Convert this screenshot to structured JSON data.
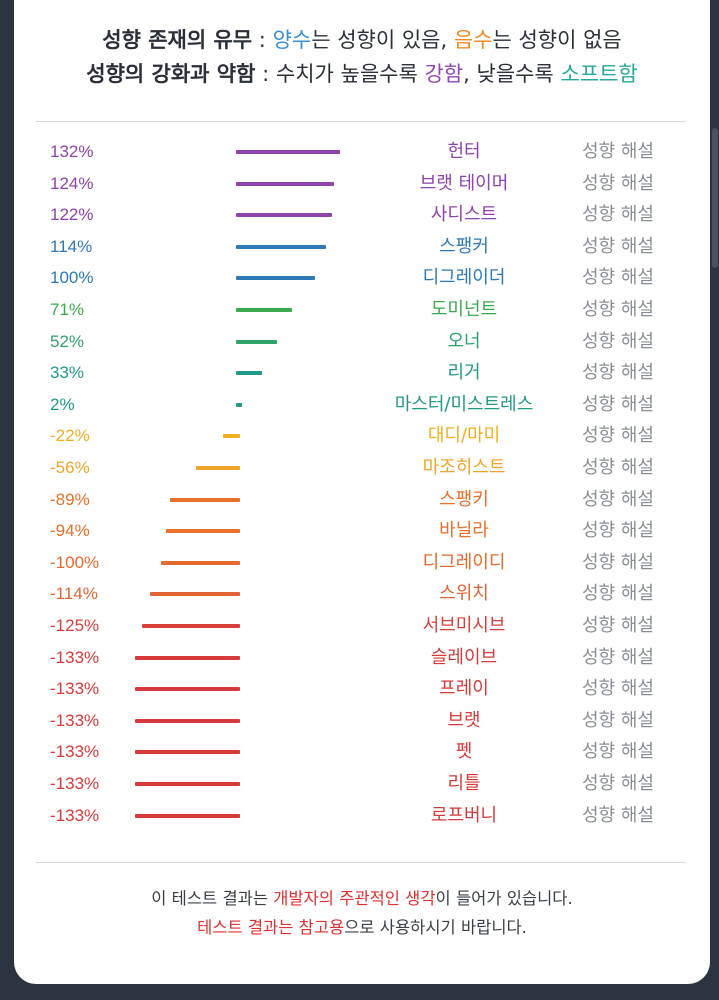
{
  "header": {
    "line1": {
      "title": "성향 존재의 유무",
      "sep": " : ",
      "pos": "양수",
      "pos_rest": "는 성향이 있음, ",
      "neg": "음수",
      "neg_rest": "는 성향이 없음"
    },
    "line2": {
      "title": "성향의 강화과 약함",
      "sep": " : ",
      "rest1": "수치가 높을수록 ",
      "strong": "강함",
      "rest2": ", 낮을수록 ",
      "soft": "소프트함"
    }
  },
  "colors": {
    "blue": "#3a8fd6",
    "orange": "#f08a24",
    "purple": "#9146b8",
    "teal": "#2aa89a",
    "red": "#e03030"
  },
  "desc_label": "성향 해설",
  "rows": [
    {
      "pct": "132%",
      "name": "헌터",
      "value": 132,
      "color": "#8e44ad"
    },
    {
      "pct": "124%",
      "name": "브랫 테이머",
      "value": 124,
      "color": "#8e44ad"
    },
    {
      "pct": "122%",
      "name": "사디스트",
      "value": 122,
      "color": "#8e44ad"
    },
    {
      "pct": "114%",
      "name": "스팽커",
      "value": 114,
      "color": "#2e7ab8"
    },
    {
      "pct": "100%",
      "name": "디그레이더",
      "value": 100,
      "color": "#2e7ab8"
    },
    {
      "pct": "71%",
      "name": "도미넌트",
      "value": 71,
      "color": "#3aaa4c"
    },
    {
      "pct": "52%",
      "name": "오너",
      "value": 52,
      "color": "#2fa36a"
    },
    {
      "pct": "33%",
      "name": "리거",
      "value": 33,
      "color": "#219a88"
    },
    {
      "pct": "2%",
      "name": "마스터/미스트레스",
      "value": 2,
      "color": "#219a88"
    },
    {
      "pct": "-22%",
      "name": "대디/마미",
      "value": -22,
      "color": "#f2b01e"
    },
    {
      "pct": "-56%",
      "name": "마조히스트",
      "value": -56,
      "color": "#efa52a"
    },
    {
      "pct": "-89%",
      "name": "스팽키",
      "value": -89,
      "color": "#e8702a"
    },
    {
      "pct": "-94%",
      "name": "바닐라",
      "value": -94,
      "color": "#e8702a"
    },
    {
      "pct": "-100%",
      "name": "디그레이디",
      "value": -100,
      "color": "#e46a2e"
    },
    {
      "pct": "-114%",
      "name": "스위치",
      "value": -114,
      "color": "#e06434"
    },
    {
      "pct": "-125%",
      "name": "서브미시브",
      "value": -125,
      "color": "#d9403a"
    },
    {
      "pct": "-133%",
      "name": "슬레이브",
      "value": -133,
      "color": "#d63a3a"
    },
    {
      "pct": "-133%",
      "name": "프레이",
      "value": -133,
      "color": "#d63a3a"
    },
    {
      "pct": "-133%",
      "name": "브랫",
      "value": -133,
      "color": "#d63a3a"
    },
    {
      "pct": "-133%",
      "name": "펫",
      "value": -133,
      "color": "#d63a3a"
    },
    {
      "pct": "-133%",
      "name": "리틀",
      "value": -133,
      "color": "#d63a3a"
    },
    {
      "pct": "-133%",
      "name": "로프버니",
      "value": -133,
      "color": "#d63a3a"
    }
  ],
  "footer": {
    "l1_a": "이 테스트 결과는 ",
    "l1_b": "개발자의 주관적인 생각",
    "l1_c": "이 들어가 있습니다.",
    "l2_a": "테스트 결과는 참고용",
    "l2_b": "으로 사용하시기 바랍니다."
  }
}
